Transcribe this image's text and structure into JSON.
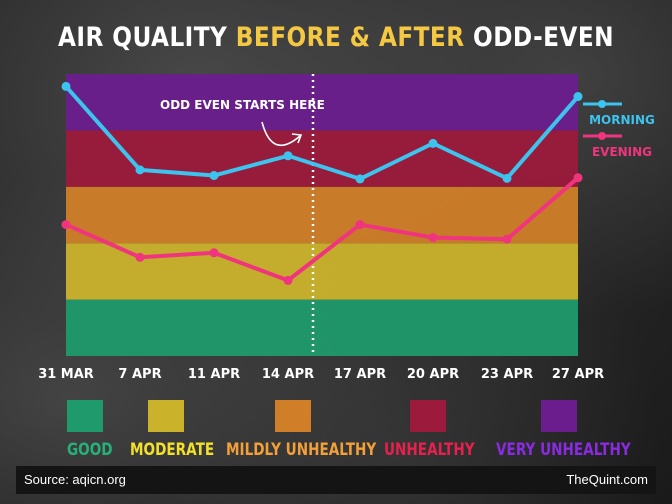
{
  "title": {
    "part1": "AIR QUALITY ",
    "part2": "BEFORE & AFTER",
    "part3": " ODD-EVEN"
  },
  "annotation": "ODD EVEN STARTS HERE",
  "legend": [
    {
      "label": "GOOD",
      "color": "#1f9a6c"
    },
    {
      "label": "MODERATE",
      "color": "#cbb22b"
    },
    {
      "label": "MILDLY UNHEALTHY",
      "color": "#d07e28"
    },
    {
      "label": "UNHEALTHY",
      "color": "#9c1a3c"
    },
    {
      "label": "VERY UNHEALTHY",
      "color": "#6b1d8e"
    }
  ],
  "label_colors": {
    "GOOD": "#27b07a",
    "MODERATE": "#f2e02a",
    "MILDLY UNHEALTHY": "#f3a03a",
    "UNHEALTHY": "#e8204e",
    "VERY UNHEALTHY": "#8a2be2"
  },
  "footer": {
    "source": "Source: aqicn.org",
    "brand": "TheQuint.com"
  },
  "chart_data": {
    "type": "line",
    "title": "AIR QUALITY BEFORE & AFTER ODD-EVEN",
    "categories": [
      "31 MAR",
      "7 APR",
      "11 APR",
      "14 APR",
      "17 APR",
      "20 APR",
      "23 APR",
      "27 APR"
    ],
    "bands": [
      "GOOD",
      "MODERATE",
      "MILDLY UNHEALTHY",
      "UNHEALTHY",
      "VERY UNHEALTHY"
    ],
    "series": [
      {
        "name": "MORNING",
        "color": "#3cc3ee",
        "values": [
          4.78,
          3.3,
          3.2,
          3.55,
          3.14,
          3.77,
          3.15,
          4.6
        ]
      },
      {
        "name": "EVENING",
        "color": "#f0347e",
        "values": [
          2.33,
          1.75,
          1.83,
          1.34,
          2.33,
          2.1,
          2.07,
          3.16
        ]
      }
    ],
    "odd_even_start": "between 14 APR and 17 APR",
    "legend_position": "right"
  }
}
